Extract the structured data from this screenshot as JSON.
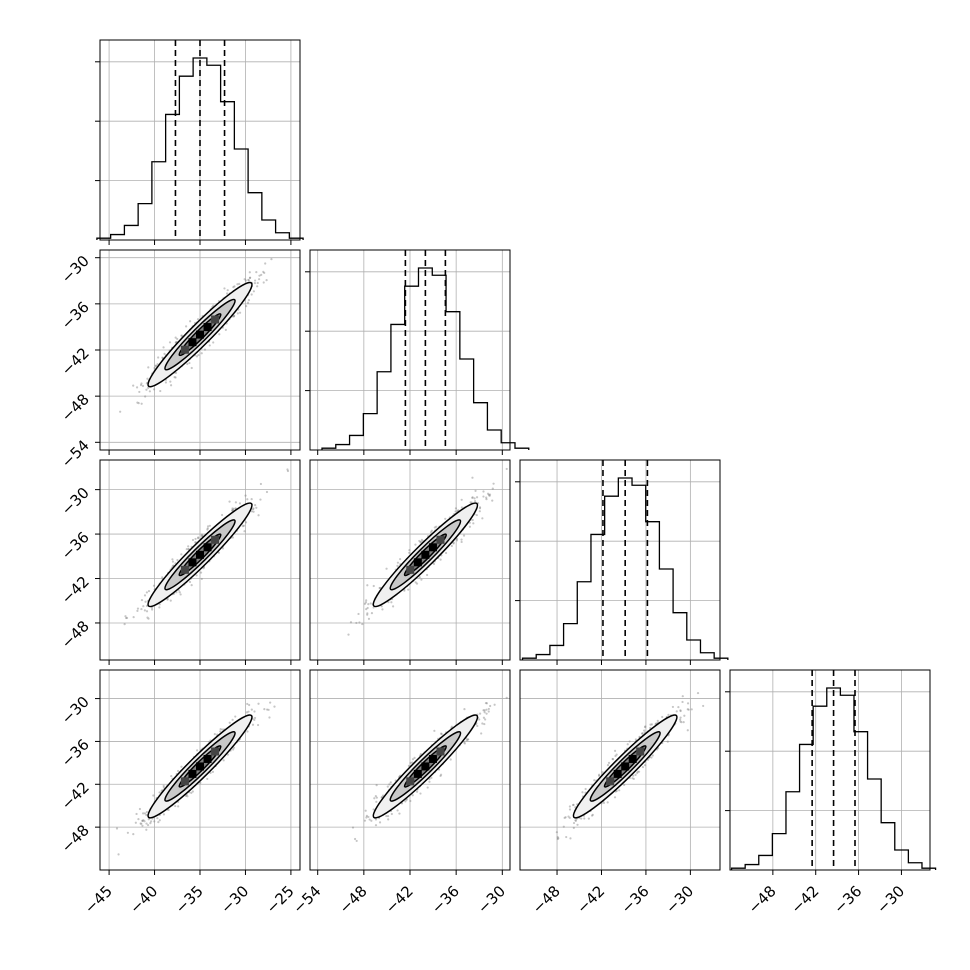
{
  "chart_data": {
    "type": "corner",
    "grid": true,
    "colors": {
      "frame": "#000000",
      "grid": "#b0b0b0",
      "scatter": "#808080",
      "hist": "#000000"
    },
    "params": [
      {
        "range": [
          -46,
          -24
        ],
        "ticks": [
          "−45",
          "−40",
          "−35",
          "−30",
          "−25"
        ],
        "tick_values": [
          -45,
          -40,
          -35,
          -30,
          -25
        ],
        "quantiles": [
          -37.7,
          -35.0,
          -32.3
        ],
        "mean": -35.0,
        "sd": 2.7
      },
      {
        "range": [
          -55,
          -29
        ],
        "ticks": [
          "−54",
          "−48",
          "−42",
          "−36",
          "−30"
        ],
        "tick_values": [
          -54,
          -48,
          -42,
          -36,
          -30
        ],
        "quantiles": [
          -42.6,
          -40.0,
          -37.4
        ],
        "mean": -40.0,
        "sd": 3.2
      },
      {
        "range": [
          -53,
          -26
        ],
        "ticks": [
          "−48",
          "−42",
          "−36",
          "−30"
        ],
        "tick_values": [
          -48,
          -42,
          -36,
          -30
        ],
        "quantiles": [
          -41.8,
          -38.8,
          -35.8
        ],
        "mean": -38.8,
        "sd": 3.3
      },
      {
        "range": [
          -54,
          -26
        ],
        "ticks": [
          "−48",
          "−42",
          "−36",
          "−30"
        ],
        "tick_values": [
          -48,
          -42,
          -36,
          -30
        ],
        "quantiles": [
          -42.5,
          -39.5,
          -36.5
        ],
        "mean": -39.5,
        "sd": 3.4
      }
    ],
    "y_axis": {
      "row1": [
        "−30",
        "−36",
        "−42",
        "−48",
        "−54"
      ],
      "rows": [
        "−30",
        "−36",
        "−42",
        "−48"
      ]
    },
    "hist_shape": [
      0.01,
      0.03,
      0.08,
      0.2,
      0.43,
      0.69,
      0.9,
      1.0,
      0.96,
      0.76,
      0.5,
      0.26,
      0.11,
      0.04,
      0.01
    ],
    "correlation": 0.95
  }
}
